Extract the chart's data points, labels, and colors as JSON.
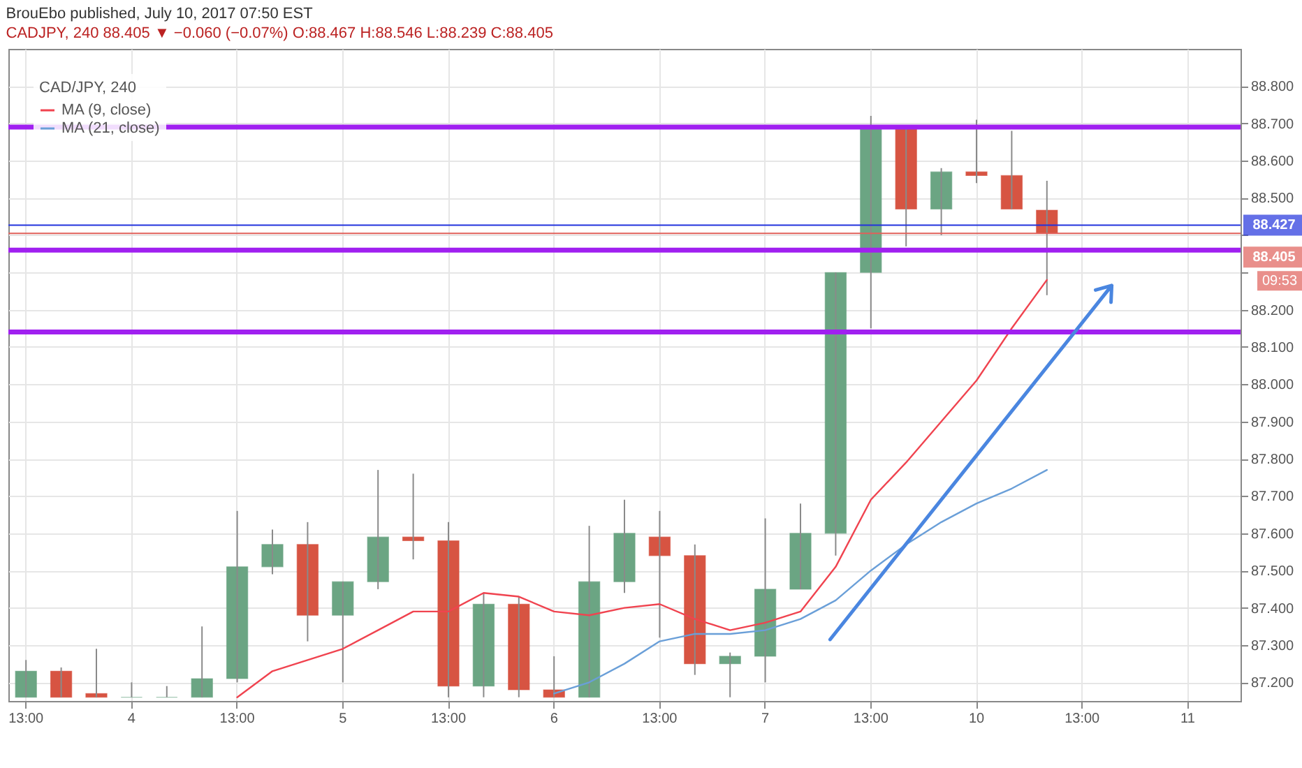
{
  "chart_data": {
    "type": "candlestick",
    "title": "BrouEbo published, July 10, 2017 07:50 EST",
    "subtitle": "CADJPY, 240  88.405 ▼ −0.060 (−0.07%) O:88.467 H:88.546 L:88.239 C:88.405",
    "legend_title": "CAD/JPY, 240",
    "categories": [
      "13:00",
      null,
      null,
      "4",
      null,
      null,
      "13:00",
      null,
      null,
      "5",
      null,
      null,
      "13:00",
      null,
      null,
      "6",
      null,
      null,
      "13:00",
      null,
      null,
      "7",
      null,
      null,
      "13:00",
      null,
      null,
      "10",
      null,
      null,
      "13:00",
      null,
      null,
      "11",
      null
    ],
    "ohlc": [
      [
        87.16,
        87.26,
        87.16,
        87.23
      ],
      [
        87.23,
        87.24,
        87.16,
        87.16
      ],
      [
        87.17,
        87.29,
        87.16,
        87.16
      ],
      [
        87.16,
        87.2,
        87.16,
        87.16
      ],
      [
        87.16,
        87.19,
        87.16,
        87.16
      ],
      [
        87.16,
        87.35,
        87.16,
        87.21
      ],
      [
        87.21,
        87.66,
        87.2,
        87.51
      ],
      [
        87.51,
        87.61,
        87.49,
        87.57
      ],
      [
        87.57,
        87.63,
        87.31,
        87.38
      ],
      [
        87.38,
        87.47,
        87.2,
        87.47
      ],
      [
        87.47,
        87.77,
        87.45,
        87.59
      ],
      [
        87.59,
        87.76,
        87.53,
        87.58
      ],
      [
        87.58,
        87.63,
        87.16,
        87.19
      ],
      [
        87.19,
        87.44,
        87.16,
        87.41
      ],
      [
        87.41,
        87.43,
        87.16,
        87.18
      ],
      [
        87.18,
        87.27,
        87.16,
        87.16
      ],
      [
        87.16,
        87.62,
        87.16,
        87.47
      ],
      [
        87.47,
        87.69,
        87.44,
        87.6
      ],
      [
        87.59,
        87.66,
        87.32,
        87.54
      ],
      [
        87.54,
        87.57,
        87.22,
        87.25
      ],
      [
        87.25,
        87.28,
        87.16,
        87.27
      ],
      [
        87.27,
        87.64,
        87.2,
        87.45
      ],
      [
        87.45,
        87.68,
        87.45,
        87.6
      ],
      [
        87.6,
        88.3,
        87.54,
        88.3
      ],
      [
        88.3,
        88.72,
        88.15,
        88.69
      ],
      [
        88.69,
        88.69,
        88.37,
        88.47
      ],
      [
        88.47,
        88.58,
        88.4,
        88.57
      ],
      [
        88.57,
        88.71,
        88.54,
        88.56
      ],
      [
        88.56,
        88.68,
        88.47,
        88.47
      ],
      [
        88.467,
        88.546,
        88.239,
        88.405
      ],
      null,
      null,
      null,
      null,
      null
    ],
    "colors": [
      "#6ba583",
      "#d75442",
      "#d75442",
      "#6ba583",
      "#6ba583",
      "#6ba583",
      "#6ba583",
      "#6ba583",
      "#d75442",
      "#6ba583",
      "#6ba583",
      "#d75442",
      "#d75442",
      "#6ba583",
      "#d75442",
      "#d75442",
      "#6ba583",
      "#6ba583",
      "#d75442",
      "#d75442",
      "#6ba583",
      "#6ba583",
      "#6ba583",
      "#6ba583",
      "#6ba583",
      "#d75442",
      "#6ba583",
      "#d75442",
      "#d75442",
      "#d75442",
      null,
      null,
      null,
      null,
      null
    ],
    "series": [
      {
        "name": "MA (9, close)",
        "type": "line",
        "color": "#f0434f",
        "values": [
          null,
          null,
          null,
          null,
          null,
          null,
          87.16,
          87.23,
          87.26,
          87.29,
          87.34,
          87.39,
          87.39,
          87.44,
          87.43,
          87.39,
          87.38,
          87.4,
          87.41,
          87.37,
          87.34,
          87.36,
          87.39,
          87.51,
          87.69,
          87.79,
          87.9,
          88.01,
          88.15,
          88.28,
          null,
          null,
          null,
          null,
          null
        ]
      },
      {
        "name": "MA (21, close)",
        "type": "line",
        "color": "#6a9fd8",
        "values": [
          null,
          null,
          null,
          null,
          null,
          null,
          null,
          null,
          null,
          null,
          null,
          null,
          null,
          null,
          null,
          87.17,
          87.2,
          87.25,
          87.31,
          87.33,
          87.33,
          87.34,
          87.37,
          87.42,
          87.5,
          87.57,
          87.63,
          87.68,
          87.72,
          87.77,
          null,
          null,
          null,
          null,
          null
        ]
      }
    ],
    "ylim": [
      87.15,
      88.9
    ],
    "yticks": [
      {
        "value": 87.2,
        "label": "87.200"
      },
      {
        "value": 87.3,
        "label": "87.300"
      },
      {
        "value": 87.4,
        "label": "87.400"
      },
      {
        "value": 87.5,
        "label": "87.500"
      },
      {
        "value": 87.6,
        "label": "87.600"
      },
      {
        "value": 87.7,
        "label": "87.700"
      },
      {
        "value": 87.8,
        "label": "87.800"
      },
      {
        "value": 87.9,
        "label": "87.900"
      },
      {
        "value": 88.0,
        "label": "88.000"
      },
      {
        "value": 88.1,
        "label": "88.100"
      },
      {
        "value": 88.2,
        "label": "88.200"
      },
      {
        "value": 88.3,
        "label": null
      },
      {
        "value": 88.4,
        "label": null
      },
      {
        "value": 88.5,
        "label": "88.500"
      },
      {
        "value": 88.6,
        "label": "88.600"
      },
      {
        "value": 88.7,
        "label": "88.700"
      },
      {
        "value": 88.8,
        "label": "88.800"
      }
    ],
    "ref_lines": [
      {
        "axis": "y",
        "value": 88.69,
        "color": "#a020f0"
      },
      {
        "axis": "y",
        "value": 88.36,
        "color": "#a020f0"
      },
      {
        "axis": "y",
        "value": 88.14,
        "color": "#a020f0"
      },
      {
        "axis": "y",
        "value": 88.427,
        "label": "88.427",
        "color": "#2233dd"
      },
      {
        "axis": "y",
        "value": 88.405,
        "label": "88.405",
        "color": "#e0605a"
      }
    ],
    "annotations": [
      "09:53"
    ],
    "grid": true,
    "legend": "top left"
  }
}
